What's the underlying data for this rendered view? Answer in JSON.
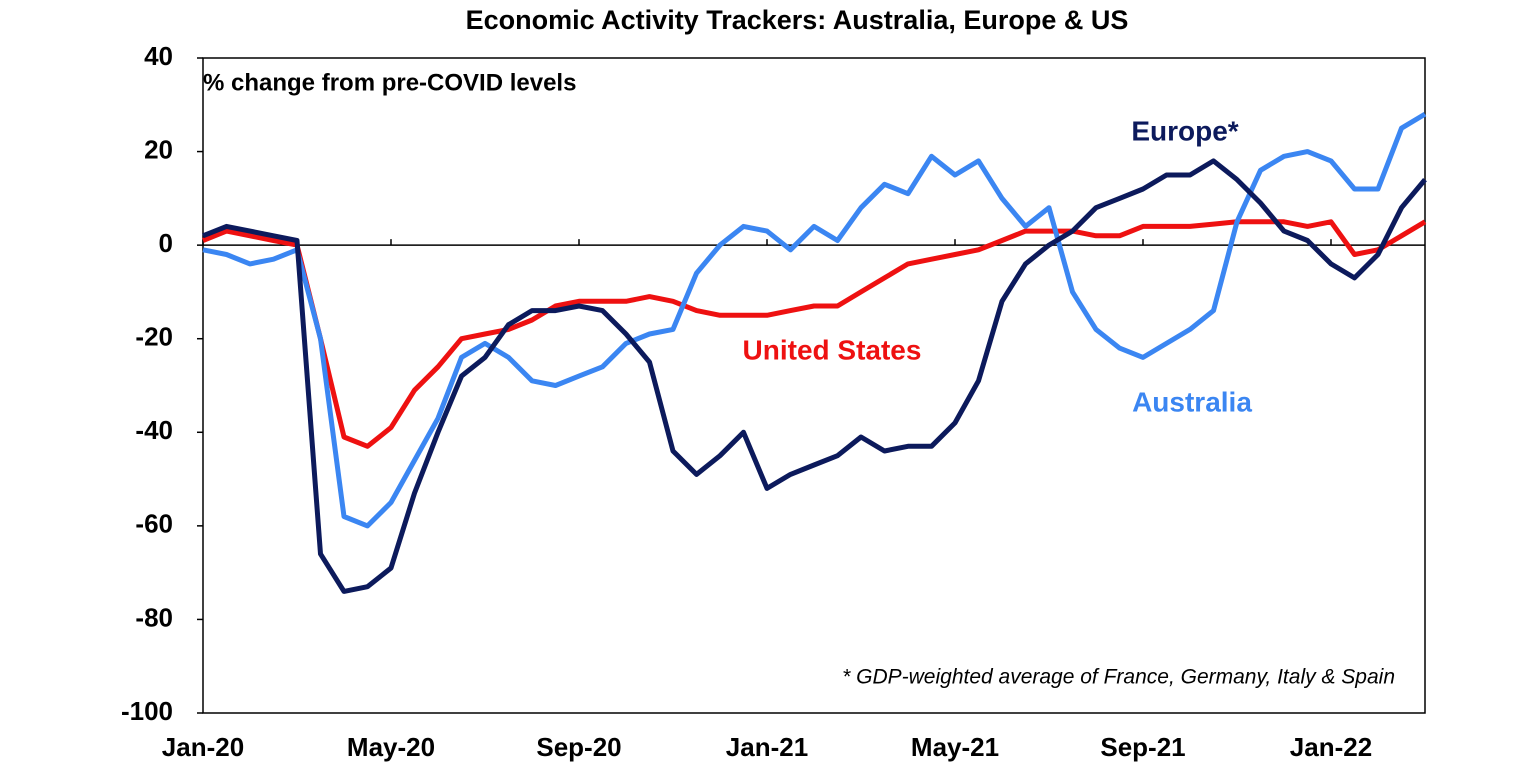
{
  "chart_data": {
    "type": "line",
    "title": "Economic Activity Trackers: Australia, Europe & US",
    "subtitle": "% change from pre-COVID levels",
    "footnote": "* GDP-weighted average of France, Germany, Italy & Spain",
    "categories": [
      "Jan-20",
      null,
      null,
      null,
      null,
      null,
      null,
      null,
      "May-20",
      null,
      null,
      null,
      null,
      null,
      null,
      null,
      "Sep-20",
      null,
      null,
      null,
      null,
      null,
      null,
      null,
      "Jan-21",
      null,
      null,
      null,
      null,
      null,
      null,
      null,
      "May-21",
      null,
      null,
      null,
      null,
      null,
      null,
      null,
      "Sep-21",
      null,
      null,
      null,
      null,
      null,
      null,
      null,
      "Jan-22",
      null,
      null,
      null,
      null
    ],
    "series": [
      {
        "name": "United States",
        "color": "#ee1111",
        "values": [
          1,
          3,
          2,
          1,
          0,
          -20,
          -41,
          -43,
          -39,
          -31,
          -26,
          -20,
          -19,
          -18,
          -16,
          -13,
          -12,
          -12,
          -12,
          -11,
          -12,
          -14,
          -15,
          -15,
          -15,
          -14,
          -13,
          -13,
          -10,
          -7,
          -4,
          -3,
          -2,
          -1,
          1,
          3,
          3,
          3,
          2,
          2,
          4,
          4,
          4,
          4.5,
          5,
          5,
          5,
          4,
          5,
          -2,
          -1,
          2,
          5
        ]
      },
      {
        "name": "Europe*",
        "color": "#0c1a5c",
        "values": [
          2,
          4,
          3,
          2,
          1,
          -66,
          -74,
          -73,
          -69,
          -53,
          -40,
          -28,
          -24,
          -17,
          -14,
          -14,
          -13,
          -14,
          -19,
          -25,
          -44,
          -49,
          -45,
          -40,
          -52,
          -49,
          -47,
          -45,
          -41,
          -44,
          -43,
          -43,
          -38,
          -29,
          -12,
          -4,
          0,
          3,
          8,
          10,
          12,
          15,
          15,
          18,
          14,
          9,
          3,
          1,
          -4,
          -7,
          -2,
          8,
          14
        ]
      },
      {
        "name": "Australia",
        "color": "#3b86f2",
        "values": [
          -1,
          -2,
          -4,
          -3,
          -1,
          -20,
          -58,
          -60,
          -55,
          -46,
          -37,
          -24,
          -21,
          -24,
          -29,
          -30,
          -28,
          -26,
          -21,
          -19,
          -18,
          -6,
          0,
          4,
          3,
          -1,
          4,
          1,
          8,
          13,
          11,
          19,
          15,
          18,
          10,
          4,
          8,
          -10,
          -18,
          -22,
          -24,
          -21,
          -18,
          -14,
          5,
          16,
          19,
          20,
          18,
          12,
          12,
          25,
          28
        ]
      }
    ],
    "ylim": [
      -100,
      40
    ],
    "yticks": [
      -100,
      -80,
      -60,
      -40,
      -20,
      0,
      20,
      40
    ],
    "grid": false
  }
}
